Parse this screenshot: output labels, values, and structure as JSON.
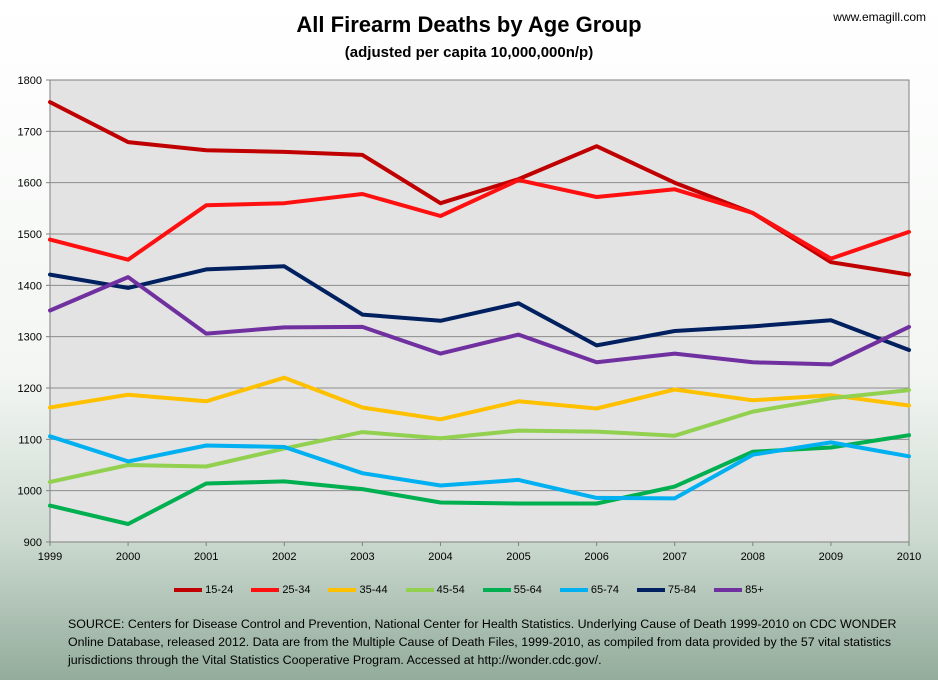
{
  "watermark": "www.emagill.com",
  "source_text": "SOURCE:  Centers for Disease Control and Prevention, National Center for Health Statistics.  Underlying Cause of Death 1999-2010  on CDC WONDER Online Database, released 2012.  Data are from the Multiple Cause of Death Files, 1999-2010,  as compiled from data provided by the 57 vital statistics jurisdictions through the Vital Statistics Cooperative Program. Accessed at http://wonder.cdc.gov/.",
  "chart_data": {
    "type": "line",
    "title": "All Firearm Deaths by Age Group",
    "subtitle": "(adjusted per capita 10,000,000n/p)",
    "xlabel": "",
    "ylabel": "",
    "x": [
      "1999",
      "2000",
      "2001",
      "2002",
      "2003",
      "2004",
      "2005",
      "2006",
      "2007",
      "2008",
      "2009",
      "2010"
    ],
    "ylim": [
      900,
      1800
    ],
    "yticks": [
      "900",
      "1000",
      "1100",
      "1200",
      "1300",
      "1400",
      "1500",
      "1600",
      "1700",
      "1800"
    ],
    "grid": true,
    "legend_position": "bottom",
    "series": [
      {
        "name": "15-24",
        "color": "#c00000",
        "values": [
          1757,
          1679,
          1663,
          1660,
          1654,
          1560,
          1607,
          1671,
          1600,
          1541,
          1445,
          1421
        ]
      },
      {
        "name": "25-34",
        "color": "#ff1010",
        "values": [
          1489,
          1450,
          1556,
          1560,
          1578,
          1535,
          1605,
          1572,
          1587,
          1541,
          1452,
          1504
        ]
      },
      {
        "name": "35-44",
        "color": "#ffc000",
        "values": [
          1162,
          1187,
          1174,
          1220,
          1162,
          1139,
          1174,
          1160,
          1197,
          1176,
          1186,
          1166
        ]
      },
      {
        "name": "45-54",
        "color": "#92d050",
        "values": [
          1017,
          1050,
          1047,
          1082,
          1114,
          1102,
          1117,
          1115,
          1107,
          1154,
          1180,
          1196
        ]
      },
      {
        "name": "55-64",
        "color": "#00b050",
        "values": [
          971,
          935,
          1014,
          1018,
          1003,
          977,
          975,
          975,
          1008,
          1076,
          1084,
          1108
        ]
      },
      {
        "name": "65-74",
        "color": "#00b0f0",
        "values": [
          1106,
          1057,
          1088,
          1085,
          1034,
          1010,
          1021,
          986,
          985,
          1070,
          1094,
          1067
        ]
      },
      {
        "name": "75-84",
        "color": "#002060",
        "values": [
          1421,
          1395,
          1431,
          1437,
          1343,
          1331,
          1365,
          1283,
          1311,
          1320,
          1332,
          1274
        ]
      },
      {
        "name": "85+",
        "color": "#7030a0",
        "values": [
          1351,
          1416,
          1306,
          1318,
          1319,
          1267,
          1304,
          1250,
          1267,
          1250,
          1246,
          1319
        ]
      }
    ]
  }
}
